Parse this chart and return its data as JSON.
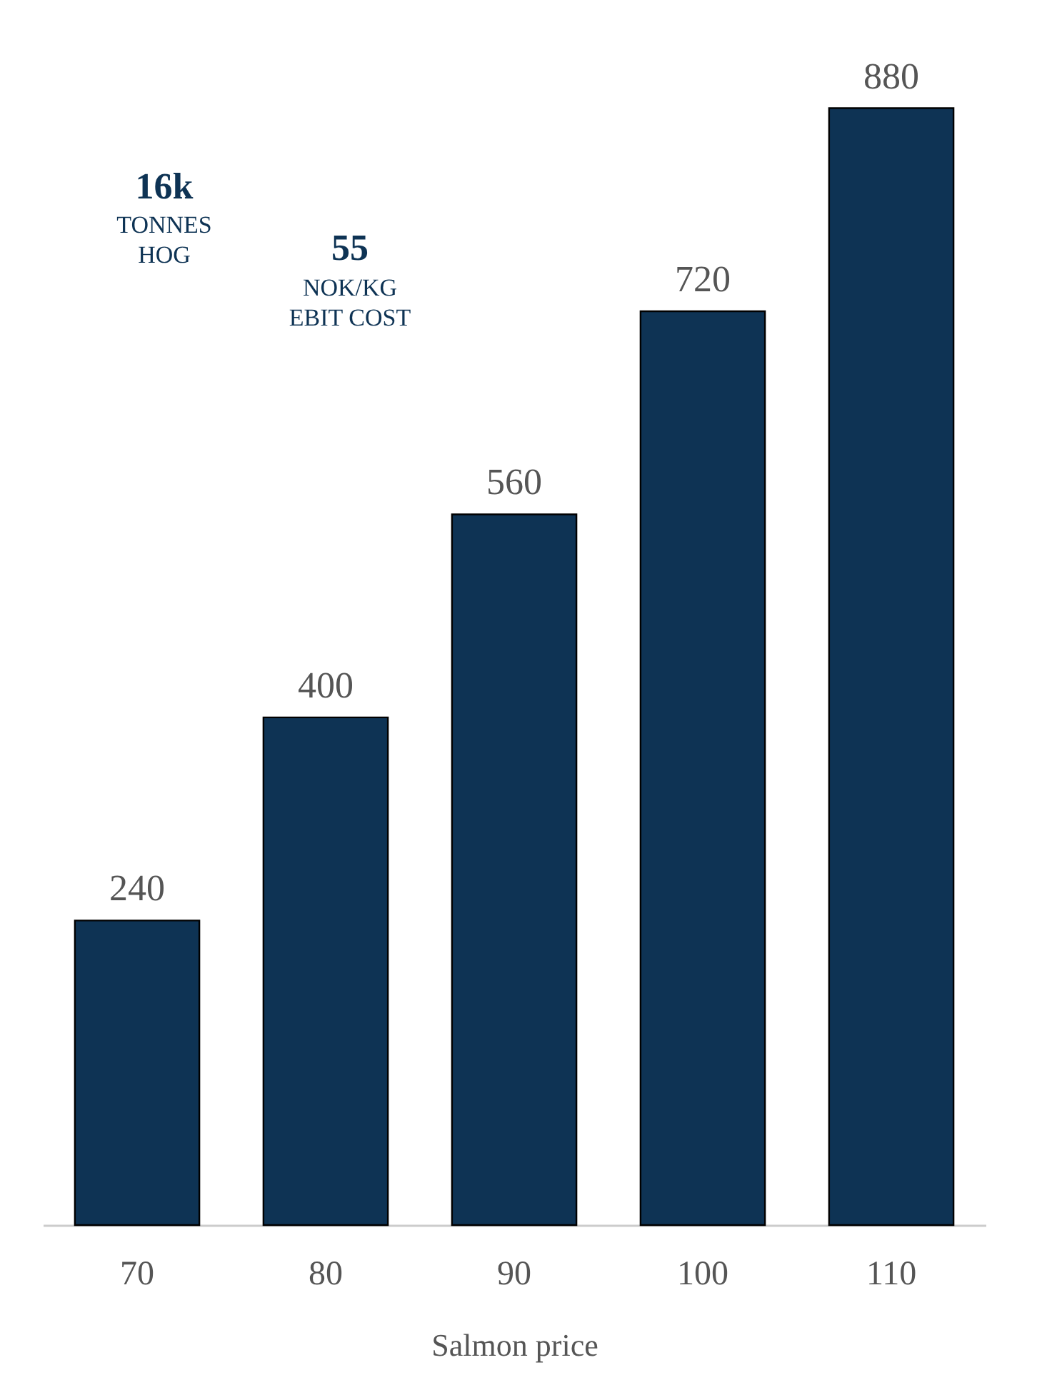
{
  "chart_data": {
    "type": "bar",
    "xlabel": "Salmon price",
    "categories": [
      "70",
      "80",
      "90",
      "100",
      "110"
    ],
    "values": [
      240,
      400,
      560,
      720,
      880
    ],
    "color": "#0e3354",
    "data_labels": true,
    "grid": false,
    "tick_labels": "x",
    "annotations": [
      "16k",
      "TONNES\nHOG",
      "55",
      "NOK/KG\nEBIT COST"
    ]
  }
}
